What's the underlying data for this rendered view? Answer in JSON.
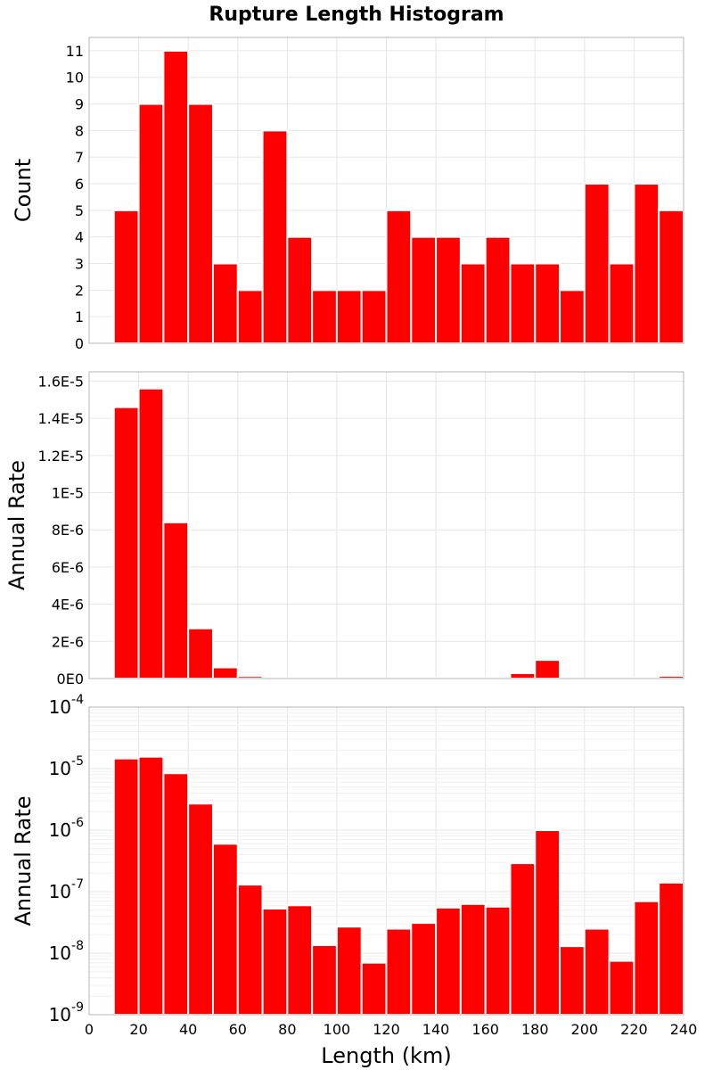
{
  "title": "Rupture Length Histogram",
  "colors": {
    "bar": "#ff0000"
  },
  "chart_data": [
    {
      "type": "bar",
      "name": "count-panel",
      "x": [
        15,
        25,
        35,
        45,
        55,
        65,
        75,
        85,
        95,
        105,
        115,
        125,
        135,
        145,
        155,
        165,
        175,
        185,
        195,
        205,
        215,
        225,
        235
      ],
      "values": [
        5,
        9,
        11,
        9,
        3,
        2,
        8,
        4,
        2,
        2,
        2,
        5,
        4,
        4,
        3,
        4,
        3,
        3,
        2,
        6,
        3,
        6,
        5
      ],
      "bin_width": 10,
      "xlim": [
        0,
        240
      ],
      "ylim": [
        0,
        11.5
      ],
      "ylabel": "Count",
      "yticks": [
        0,
        1,
        2,
        3,
        4,
        5,
        6,
        7,
        8,
        9,
        10,
        11
      ],
      "ytick_labels": [
        "0",
        "1",
        "2",
        "3",
        "4",
        "5",
        "6",
        "7",
        "8",
        "9",
        "10",
        "11"
      ],
      "grid": true
    },
    {
      "type": "bar",
      "name": "rate-linear-panel",
      "x": [
        15,
        25,
        35,
        45,
        55,
        65,
        75,
        85,
        95,
        105,
        115,
        125,
        135,
        145,
        155,
        165,
        175,
        185,
        195,
        205,
        215,
        225,
        235
      ],
      "values": [
        1.46e-05,
        1.56e-05,
        8.4e-06,
        2.7e-06,
        6e-07,
        1.3e-07,
        5e-08,
        6e-08,
        1.3e-08,
        2.7e-08,
        7e-09,
        2.5e-08,
        3e-08,
        5.5e-08,
        6.3e-08,
        5.7e-08,
        2.9e-07,
        1e-06,
        1.3e-08,
        2.5e-08,
        7.5e-09,
        7e-08,
        1.4e-07
      ],
      "bin_width": 10,
      "xlim": [
        0,
        240
      ],
      "ylim": [
        0,
        1.65e-05
      ],
      "ylabel": "Annual Rate",
      "yticks": [
        0,
        2e-06,
        4e-06,
        6e-06,
        8e-06,
        1e-05,
        1.2e-05,
        1.4e-05,
        1.6e-05
      ],
      "ytick_labels": [
        "0E0",
        "2E-6",
        "4E-6",
        "6E-6",
        "8E-6",
        "1E-5",
        "1.2E-5",
        "1.4E-5",
        "1.6E-5"
      ],
      "grid": true
    },
    {
      "type": "bar",
      "name": "rate-log-panel",
      "x": [
        15,
        25,
        35,
        45,
        55,
        65,
        75,
        85,
        95,
        105,
        115,
        125,
        135,
        145,
        155,
        165,
        175,
        185,
        195,
        205,
        215,
        225,
        235
      ],
      "values": [
        1.46e-05,
        1.56e-05,
        8.4e-06,
        2.7e-06,
        6e-07,
        1.3e-07,
        5.3e-08,
        6e-08,
        1.35e-08,
        2.7e-08,
        7e-09,
        2.5e-08,
        3.1e-08,
        5.5e-08,
        6.3e-08,
        5.7e-08,
        2.9e-07,
        1e-06,
        1.3e-08,
        2.5e-08,
        7.5e-09,
        7e-08,
        1.4e-07
      ],
      "bin_width": 10,
      "xlim": [
        0,
        240
      ],
      "ylim": [
        1e-09,
        0.0001
      ],
      "yscale": "log",
      "ylabel": "Annual Rate",
      "xlabel": "Length (km)",
      "ytick_exponents": [
        -9,
        -8,
        -7,
        -6,
        -5,
        -4
      ],
      "ytick_base": "10",
      "xticks": [
        0,
        20,
        40,
        60,
        80,
        100,
        120,
        140,
        160,
        180,
        200,
        220,
        240
      ],
      "xtick_labels": [
        "0",
        "20",
        "40",
        "60",
        "80",
        "100",
        "120",
        "140",
        "160",
        "180",
        "200",
        "220",
        "240"
      ],
      "grid": true
    }
  ]
}
